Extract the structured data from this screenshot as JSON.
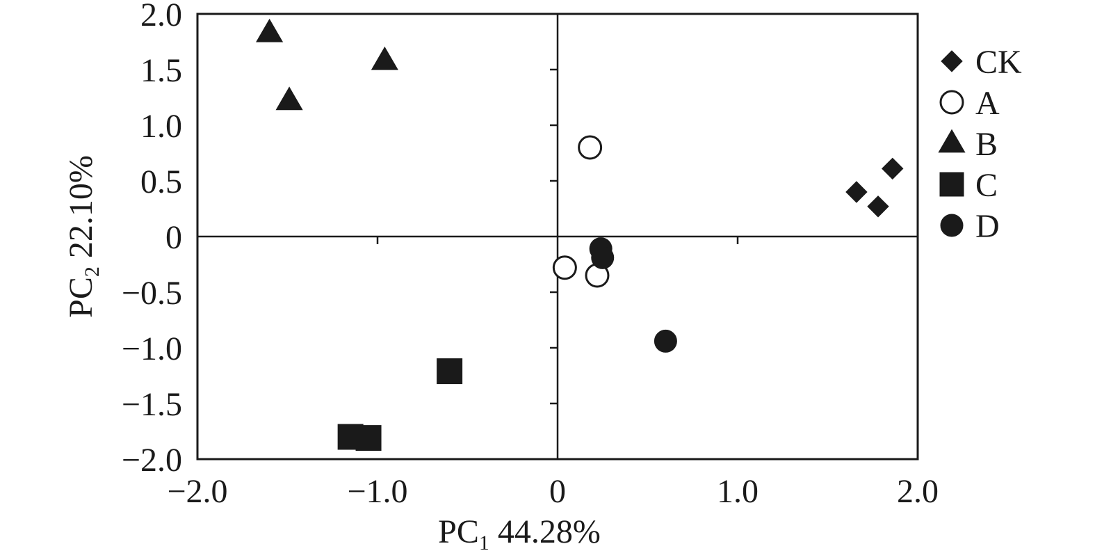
{
  "chart_data": {
    "type": "scatter",
    "xlabel": {
      "main": "PC",
      "sub": "1",
      "rest": " 44.28%"
    },
    "ylabel": {
      "main": "PC",
      "sub": "2",
      "rest": " 22.10%"
    },
    "xlim": [
      -2.0,
      2.0
    ],
    "ylim": [
      -2.0,
      2.0
    ],
    "x_ticks": [
      {
        "value": -2.0,
        "label": "−2.0"
      },
      {
        "value": -1.0,
        "label": "−1.0"
      },
      {
        "value": 0,
        "label": "0"
      },
      {
        "value": 1.0,
        "label": "1.0"
      },
      {
        "value": 2.0,
        "label": "2.0"
      }
    ],
    "y_ticks": [
      {
        "value": 2.0,
        "label": "2.0"
      },
      {
        "value": 1.5,
        "label": "1.5"
      },
      {
        "value": 1.0,
        "label": "1.0"
      },
      {
        "value": 0.5,
        "label": "0.5"
      },
      {
        "value": 0,
        "label": "0"
      },
      {
        "value": -0.5,
        "label": "−0.5"
      },
      {
        "value": -1.0,
        "label": "−1.0"
      },
      {
        "value": -1.5,
        "label": "−1.5"
      },
      {
        "value": -2.0,
        "label": "−2.0"
      }
    ],
    "zero_lines": true,
    "grid": false,
    "legend_position": "right",
    "marker_color": "#1a1a1a",
    "series": [
      {
        "name": "CK",
        "marker": "diamond",
        "filled": true,
        "points": [
          [
            1.66,
            0.4
          ],
          [
            1.78,
            0.27
          ],
          [
            1.86,
            0.61
          ]
        ]
      },
      {
        "name": "A",
        "marker": "circle",
        "filled": false,
        "points": [
          [
            0.18,
            0.8
          ],
          [
            0.04,
            -0.28
          ],
          [
            0.22,
            -0.35
          ]
        ]
      },
      {
        "name": "B",
        "marker": "triangle",
        "filled": true,
        "points": [
          [
            -1.6,
            1.83
          ],
          [
            -1.49,
            1.22
          ],
          [
            -0.96,
            1.58
          ]
        ]
      },
      {
        "name": "C",
        "marker": "square",
        "filled": true,
        "points": [
          [
            -1.15,
            -1.8
          ],
          [
            -1.05,
            -1.81
          ],
          [
            -0.6,
            -1.21
          ]
        ]
      },
      {
        "name": "D",
        "marker": "circle",
        "filled": true,
        "points": [
          [
            0.24,
            -0.11
          ],
          [
            0.25,
            -0.19
          ],
          [
            0.6,
            -0.94
          ]
        ]
      }
    ]
  }
}
